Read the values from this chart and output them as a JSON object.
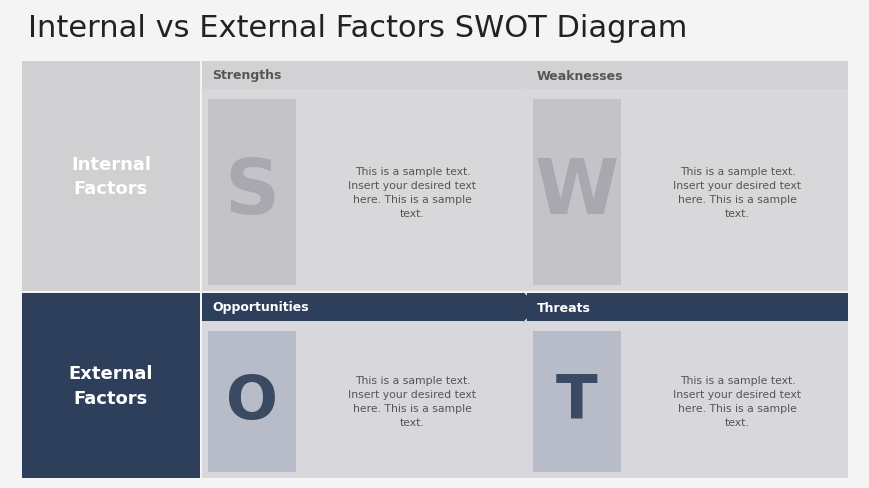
{
  "title": "Internal vs External Factors SWOT Diagram",
  "title_fontsize": 22,
  "title_color": "#222222",
  "bg_color": "#f4f4f4",
  "light_gray": "#d0d0d2",
  "dark_blue": "#2e3f5c",
  "header_light_bg": "#d2d2d5",
  "content_top_bg": "#d8d8db",
  "content_bot_bg": "#d8d8dc",
  "card_sw_color": "#c4c4c8",
  "card_ot_color": "#b8bcc8",
  "letter_sw_color": "#a8a8b0",
  "letter_ot_color": "#3a4a62",
  "text_dark": "#555555",
  "text_white": "#ffffff",
  "text_hdr_dark": "#555555",
  "sample_text": "This is a sample text.\nInsert your desired text\nhere. This is a sample\ntext.",
  "internal_label": "Internal\nFactors",
  "external_label": "External\nFactors",
  "strengths_label": "Strengths",
  "weaknesses_label": "Weaknesses",
  "opportunities_label": "Opportunities",
  "threats_label": "Threats"
}
